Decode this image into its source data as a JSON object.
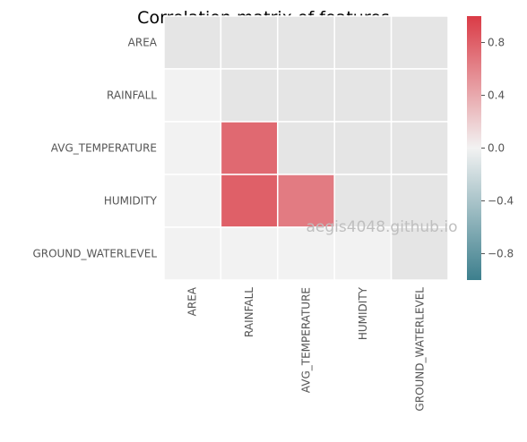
{
  "chart_data": {
    "type": "heatmap",
    "title": "Correlation matrix of features",
    "rows": [
      "AREA",
      "RAINFALL",
      "AVG_TEMPERATURE",
      "HUMIDITY",
      "GROUND_WATERLEVEL"
    ],
    "columns": [
      "AREA",
      "RAINFALL",
      "AVG_TEMPERATURE",
      "HUMIDITY",
      "GROUND_WATERLEVEL"
    ],
    "mask": "upper-triangle-including-diagonal",
    "values": [
      [
        null,
        null,
        null,
        null,
        null
      ],
      [
        0.0,
        null,
        null,
        null,
        null
      ],
      [
        0.0,
        0.75,
        null,
        null,
        null
      ],
      [
        0.0,
        0.8,
        0.65,
        null,
        null
      ],
      [
        0.0,
        0.0,
        0.0,
        0.0,
        null
      ]
    ],
    "vmin": -1.0,
    "vmax": 1.0,
    "colormap": "diverging blue-white-red",
    "colors": {
      "negative": "#3d7f8d",
      "center": "#f2f2f2",
      "positive": "#da3b46",
      "masked": "#e5e5e5",
      "grid": "#ffffff"
    },
    "colorbar": {
      "ticks": [
        0.8,
        0.4,
        0.0,
        -0.4,
        -0.8
      ],
      "tick_labels": [
        "0.8",
        "0.4",
        "0.0",
        "−0.4",
        "−0.8"
      ]
    },
    "grid": true
  },
  "watermark": "aegis4048.github.io"
}
